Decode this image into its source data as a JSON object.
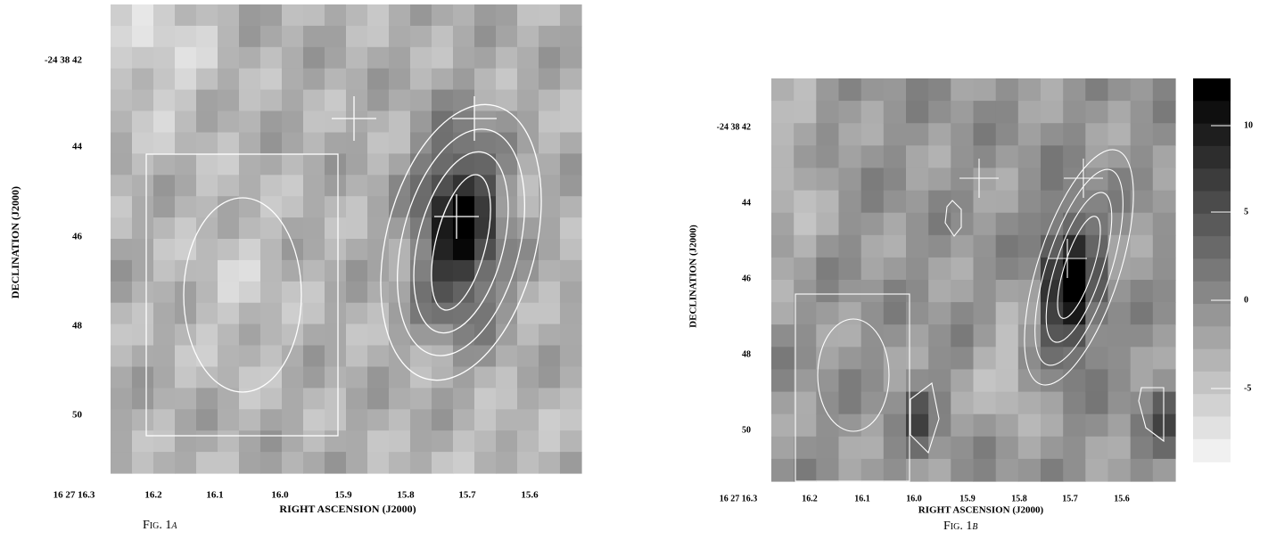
{
  "figures": [
    {
      "caption": "Fig. 1",
      "panel": "a",
      "y_axis_label": "DECLINATION (J2000)",
      "x_axis_label": "RIGHT ASCENSION (J2000)",
      "y_tick_labels": [
        "-24 38 42",
        "44",
        "46",
        "48",
        "50"
      ],
      "x_tick_labels": [
        "16 27 16.3",
        "16.2",
        "16.1",
        "16.0",
        "15.9",
        "15.8",
        "15.7",
        "15.6"
      ]
    },
    {
      "caption": "Fig. 1",
      "panel": "b",
      "y_axis_label": "DECLINATION (J2000)",
      "x_axis_label": "RIGHT ASCENSION (J2000)",
      "y_tick_labels": [
        "-24 38 42",
        "44",
        "46",
        "48",
        "50"
      ],
      "x_tick_labels": [
        "16 27 16.3",
        "16.2",
        "16.1",
        "16.0",
        "15.9",
        "15.8",
        "15.7",
        "15.6"
      ],
      "colorbar_labels": [
        "10",
        "5",
        "0",
        "-5"
      ]
    }
  ]
}
